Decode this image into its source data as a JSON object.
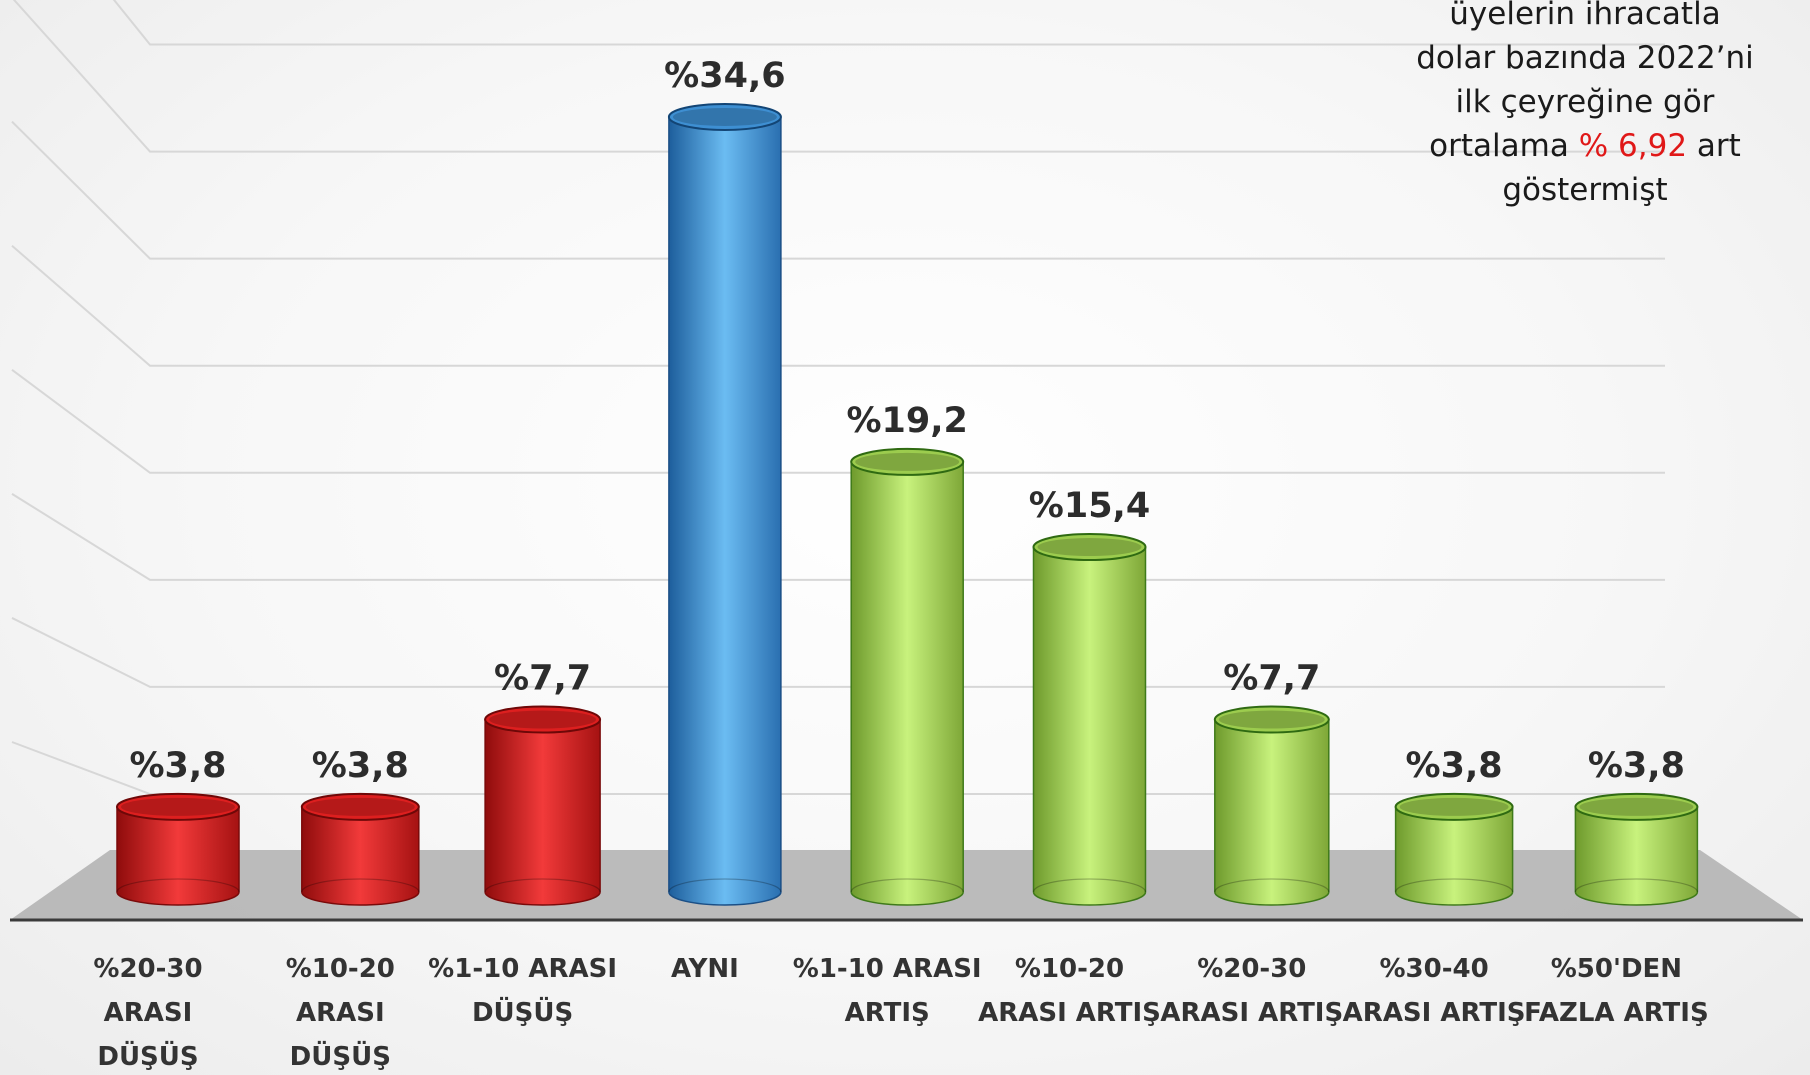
{
  "chart_data": {
    "type": "bar",
    "categories": [
      [
        "%20-30",
        "ARASI",
        "DÜŞÜŞ"
      ],
      [
        "%10-20",
        "ARASI",
        "DÜŞÜŞ"
      ],
      [
        "%1-10 ARASI",
        "DÜŞÜŞ"
      ],
      [
        "AYNI"
      ],
      [
        "%1-10 ARASI",
        "ARTIŞ"
      ],
      [
        "%10-20",
        "ARASI ARTIŞ"
      ],
      [
        "%20-30",
        "ARASI ARTIŞ"
      ],
      [
        "%30-40",
        "ARASI ARTIŞ"
      ],
      [
        "%50'DEN",
        "FAZLA ARTIŞ"
      ]
    ],
    "values": [
      3.8,
      3.8,
      7.7,
      34.6,
      19.2,
      15.4,
      7.7,
      3.8,
      3.8
    ],
    "data_labels": [
      "%3,8",
      "%3,8",
      "%7,7",
      "%34,6",
      "%19,2",
      "%15,4",
      "%7,7",
      "%3,8",
      "%3,8"
    ],
    "groups": [
      "decrease",
      "decrease",
      "decrease",
      "same",
      "increase",
      "increase",
      "increase",
      "increase",
      "increase"
    ],
    "colors": {
      "decrease": "#dd1f1f",
      "same": "#3e8fd2",
      "increase": "#9ccc4e",
      "floor": "#b0b0b0"
    },
    "ylim": [
      0,
      40
    ],
    "grid": true,
    "xlabel": "",
    "ylabel": ""
  },
  "note": {
    "line1": "üyelerin ihracatla",
    "line2": "dolar bazında 2022’ni",
    "line3": "ilk çeyreğine gör",
    "line4_pre": "ortalama ",
    "line4_highlight": "% 6,92",
    "line4_post": " art",
    "line5": "göstermişt"
  }
}
